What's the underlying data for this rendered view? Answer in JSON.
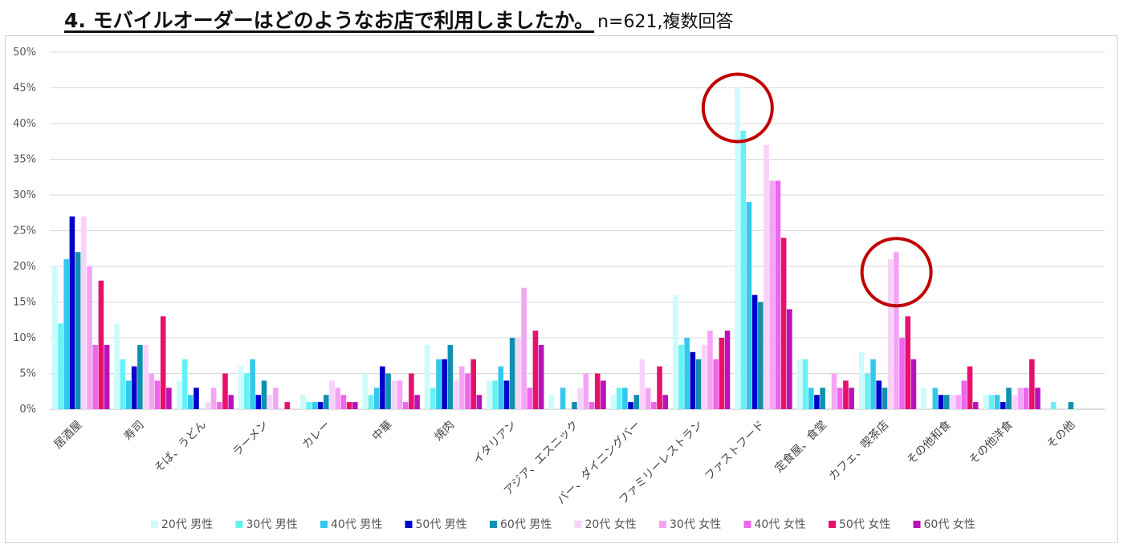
{
  "title": {
    "main": "4. モバイルオーダーはどのようなお店で利用しましたか。",
    "note": "n=621,複数回答"
  },
  "chart_data": {
    "type": "bar",
    "categories": [
      "居酒屋",
      "寿司",
      "そば、うどん",
      "ラーメン",
      "カレー",
      "中華",
      "焼肉",
      "イタリアン",
      "アジア、エスニック",
      "バー、ダイニングバー",
      "ファミリーレストラン",
      "ファストフード",
      "定食屋、食堂",
      "カフェ、喫茶店",
      "その他和食",
      "その他洋食",
      "その他"
    ],
    "ylim": [
      0,
      50
    ],
    "yticks": [
      0,
      5,
      10,
      15,
      20,
      25,
      30,
      35,
      40,
      45,
      50
    ],
    "ytick_labels": [
      "0%",
      "5%",
      "10%",
      "15%",
      "20%",
      "25%",
      "30%",
      "35%",
      "40%",
      "45%",
      "50%"
    ],
    "grid": true,
    "legend_position": "bottom",
    "series": [
      {
        "name": "20代 男性",
        "color": "#ccfbfd",
        "values": [
          20,
          12,
          4,
          6,
          2,
          5,
          9,
          4,
          2,
          2,
          16,
          45,
          7,
          8,
          3,
          2,
          0
        ]
      },
      {
        "name": "30代 男性",
        "color": "#66f2f5",
        "values": [
          12,
          7,
          7,
          5,
          1,
          2,
          3,
          4,
          0,
          3,
          9,
          39,
          7,
          5,
          0,
          2,
          1
        ]
      },
      {
        "name": "40代 男性",
        "color": "#33c9ee",
        "values": [
          21,
          4,
          2,
          7,
          1,
          3,
          7,
          6,
          3,
          3,
          10,
          29,
          3,
          7,
          3,
          2,
          0
        ]
      },
      {
        "name": "50代 男性",
        "color": "#0000cc",
        "values": [
          27,
          6,
          3,
          2,
          1,
          6,
          7,
          4,
          0,
          1,
          8,
          16,
          2,
          4,
          2,
          1,
          0
        ]
      },
      {
        "name": "60代 男性",
        "color": "#1090b0",
        "values": [
          22,
          9,
          0,
          4,
          2,
          5,
          9,
          10,
          1,
          2,
          7,
          15,
          3,
          3,
          2,
          3,
          1
        ]
      },
      {
        "name": "20代 女性",
        "color": "#f9d2f9",
        "values": [
          27,
          9,
          1,
          2,
          4,
          4,
          4,
          10,
          3,
          7,
          9,
          37,
          0,
          21,
          2,
          2,
          0
        ]
      },
      {
        "name": "30代 女性",
        "color": "#f5a4f5",
        "values": [
          20,
          5,
          3,
          3,
          3,
          4,
          6,
          17,
          5,
          3,
          11,
          32,
          5,
          22,
          2,
          3,
          0
        ]
      },
      {
        "name": "40代 女性",
        "color": "#ee66ee",
        "values": [
          9,
          4,
          1,
          0,
          2,
          1,
          5,
          3,
          1,
          1,
          7,
          32,
          3,
          10,
          4,
          3,
          0
        ]
      },
      {
        "name": "50代 女性",
        "color": "#e8106a",
        "values": [
          18,
          13,
          5,
          1,
          1,
          5,
          7,
          11,
          5,
          6,
          10,
          24,
          4,
          13,
          6,
          7,
          0
        ]
      },
      {
        "name": "60代 女性",
        "color": "#bb11bb",
        "values": [
          9,
          3,
          2,
          0,
          1,
          2,
          2,
          9,
          4,
          2,
          11,
          14,
          3,
          7,
          1,
          3,
          0
        ]
      }
    ],
    "annotations": [
      {
        "type": "circle",
        "category": "ファストフード",
        "color": "#c00000"
      },
      {
        "type": "circle",
        "category": "カフェ、喫茶店",
        "color": "#c00000"
      }
    ]
  }
}
